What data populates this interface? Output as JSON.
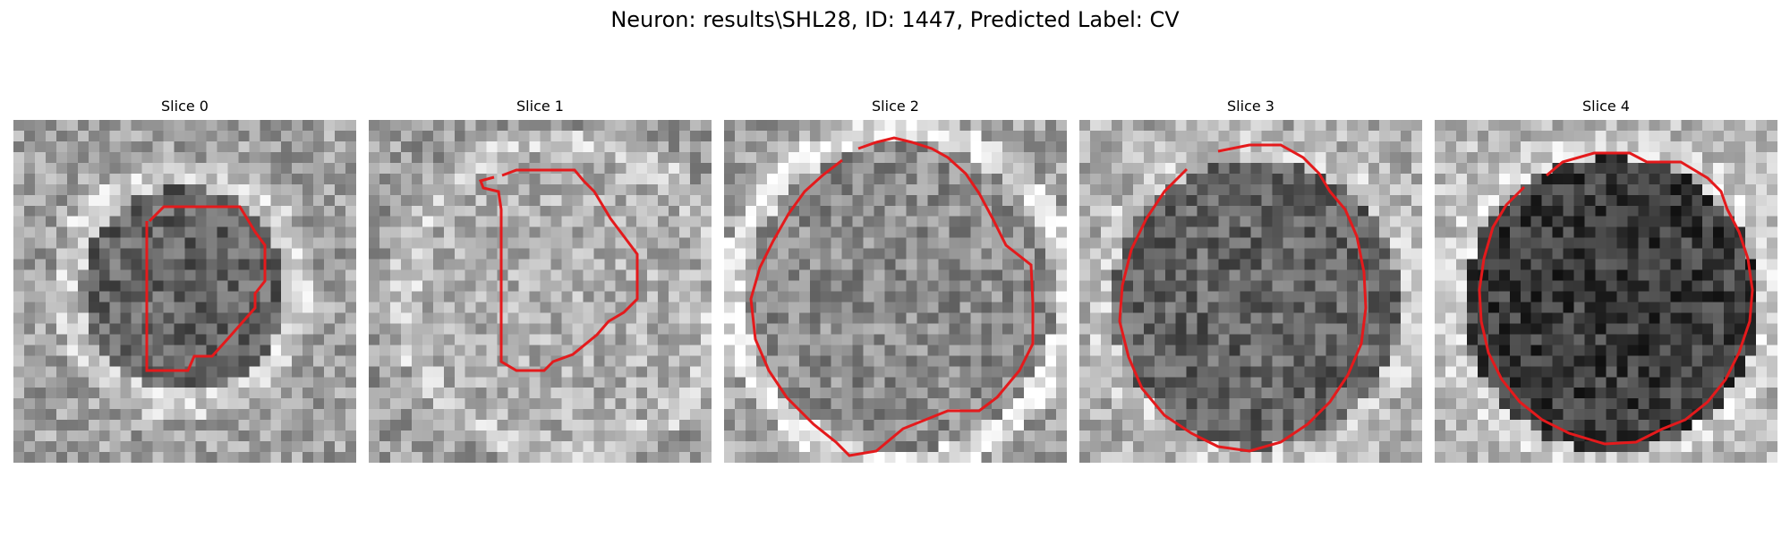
{
  "figure": {
    "title": "Neuron: results\\SHL28, ID: 1447, Predicted Label: CV"
  },
  "panels": [
    {
      "title": "Slice 0",
      "tone": "mid-gray textured; bright arc at left-center; dark patch upper-right and lower-right corner",
      "overlay": {
        "color": "#e41a1c",
        "shape": "small elongated contour, center-left"
      }
    },
    {
      "title": "Slice 1",
      "tone": "bright speckled interior with darker upper region",
      "overlay": {
        "color": "#e41a1c",
        "shape": "D-shaped contour, right of center"
      }
    },
    {
      "title": "Slice 2",
      "tone": "mid-gray interior with brighter lower-center region",
      "overlay": {
        "color": "#e41a1c",
        "shape": "large near-round contour filling the frame"
      }
    },
    {
      "title": "Slice 3",
      "tone": "dark speckled round interior on lighter background",
      "overlay": {
        "color": "#e41a1c",
        "shape": "large octagonal contour"
      }
    },
    {
      "title": "Slice 4",
      "tone": "very dark round interior on light speckled background",
      "overlay": {
        "color": "#e41a1c",
        "shape": "large octagonal contour"
      }
    }
  ]
}
